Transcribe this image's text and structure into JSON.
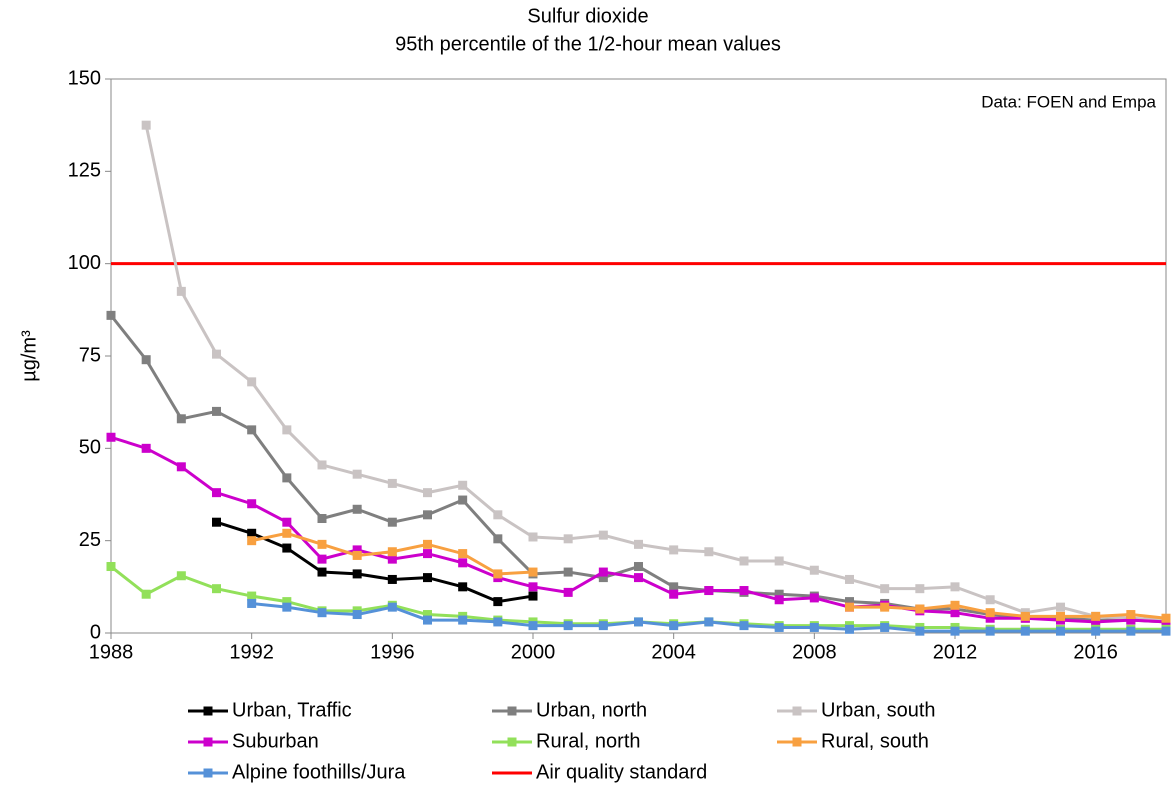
{
  "chart_data": {
    "type": "line",
    "title": "Sulfur dioxide",
    "subtitle": "95th percentile of the  1/2-hour mean values",
    "annotation": "Data: FOEN and Empa",
    "y_label": "µg/m³",
    "x": [
      1988,
      1989,
      1990,
      1991,
      1992,
      1993,
      1994,
      1995,
      1996,
      1997,
      1998,
      1999,
      2000,
      2001,
      2002,
      2003,
      2004,
      2005,
      2006,
      2007,
      2008,
      2009,
      2010,
      2011,
      2012,
      2013,
      2014,
      2015,
      2016,
      2017,
      2018
    ],
    "xlim": [
      1988,
      2018
    ],
    "xticks": [
      1988,
      1992,
      1996,
      2000,
      2004,
      2008,
      2012,
      2016
    ],
    "ylim": [
      0,
      150
    ],
    "yticks": [
      0,
      25,
      50,
      75,
      100,
      125,
      150
    ],
    "grid": false,
    "series": [
      {
        "name": "Urban, Traffic",
        "color": "#000000",
        "values": [
          null,
          null,
          null,
          30,
          27,
          23,
          16.5,
          16,
          14.5,
          15,
          12.5,
          8.5,
          10,
          null,
          null,
          null,
          null,
          null,
          null,
          null,
          null,
          null,
          null,
          null,
          null,
          null,
          null,
          null,
          null,
          null,
          null
        ]
      },
      {
        "name": "Urban, north",
        "color": "#7f7f7f",
        "values": [
          86,
          74,
          58,
          60,
          55,
          42,
          31,
          33.5,
          30,
          32,
          36,
          25.5,
          16,
          16.5,
          15,
          18,
          12.5,
          11.5,
          11,
          10.5,
          10,
          8.5,
          8,
          6.5,
          6.5,
          5,
          4,
          4,
          3.5,
          3.5,
          3
        ]
      },
      {
        "name": "Urban, south",
        "color": "#c9c3c3",
        "values": [
          null,
          137.5,
          92.5,
          75.5,
          68,
          55,
          45.5,
          43,
          40.5,
          38,
          40,
          32,
          26,
          25.5,
          26.5,
          24,
          22.5,
          22,
          19.5,
          19.5,
          17,
          14.5,
          12,
          12,
          12.5,
          9,
          5.5,
          7,
          4.5,
          4,
          3.5
        ]
      },
      {
        "name": "Suburban",
        "color": "#cc00cc",
        "values": [
          53,
          50,
          45,
          38,
          35,
          30,
          20,
          22.5,
          20,
          21.5,
          19,
          15,
          12.5,
          11,
          16.5,
          15,
          10.5,
          11.5,
          11.5,
          9,
          9.5,
          7,
          7.5,
          6,
          5.5,
          4,
          4,
          3.5,
          3,
          3.5,
          3
        ]
      },
      {
        "name": "Rural, north",
        "color": "#92e05a",
        "values": [
          18,
          10.5,
          15.5,
          12,
          10,
          8.5,
          6,
          6,
          7.5,
          5,
          4.5,
          3.5,
          3,
          2.5,
          2.5,
          3,
          2.5,
          3,
          2.5,
          2,
          2,
          2,
          2,
          1.5,
          1.5,
          1,
          1,
          1,
          1,
          1,
          1
        ]
      },
      {
        "name": "Rural, south",
        "color": "#f8a040",
        "values": [
          null,
          null,
          null,
          null,
          25,
          27,
          24,
          21,
          22,
          24,
          21.5,
          16,
          16.5,
          null,
          null,
          null,
          null,
          null,
          null,
          null,
          null,
          7,
          7,
          6.5,
          7.5,
          5.5,
          4.5,
          4.5,
          4.5,
          5,
          4
        ]
      },
      {
        "name": "Alpine foothills/Jura",
        "color": "#5591d8",
        "values": [
          null,
          null,
          null,
          null,
          8,
          7,
          5.5,
          5,
          7,
          3.5,
          3.5,
          3,
          2,
          2,
          2,
          3,
          2,
          3,
          2,
          1.5,
          1.5,
          1,
          1.5,
          0.5,
          0.5,
          0.5,
          0.5,
          0.5,
          0.5,
          0.5,
          0.5
        ]
      }
    ],
    "reference_line": {
      "name": "Air quality standard",
      "value": 100,
      "color": "#ff0000"
    }
  }
}
